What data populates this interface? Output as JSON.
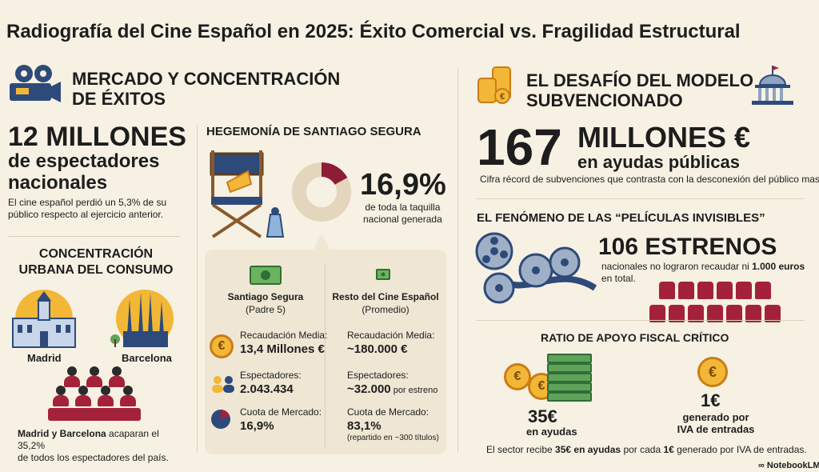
{
  "title": "Radiografía del Cine Español en 2025: Éxito Comercial vs. Fragilidad Estructural",
  "left": {
    "section_title_1": "MERCADO Y CONCENTRACIÓN",
    "section_title_2": "DE ÉXITOS",
    "spectators_big": "12 MILLONES",
    "spectators_line2": "de espectadores",
    "spectators_line3": "nacionales",
    "spectators_note": "El cine español perdió un 5,3% de su público respecto al ejercicio anterior.",
    "urban_title_1": "CONCENTRACIÓN",
    "urban_title_2": "URBANA DEL CONSUMO",
    "city_1": "Madrid",
    "city_2": "Barcelona",
    "urban_note_bold": "Madrid y Barcelona",
    "urban_note_rest": " acaparan el 35,2%",
    "urban_note_line2": "de todos los espectadores del país."
  },
  "middle": {
    "title": "HEGEMONÍA DE SANTIAGO SEGURA",
    "percent": "16,9%",
    "percent_caption_1": "de toda la taquilla",
    "percent_caption_2": "nacional generada",
    "share_fraction": 0.169,
    "col_1_title": "Santiago Segura",
    "col_1_sub": "(Padre 5)",
    "col_2_title": "Resto del Cine Español",
    "col_2_sub": "(Promedio)",
    "rows": [
      {
        "label": "Recaudación Media:",
        "value_1": "13,4 Millones €",
        "label_2": "Recaudación Media:",
        "value_2": "~180.000 €",
        "extra_2": ""
      },
      {
        "label": "Espectadores:",
        "value_1": "2.043.434",
        "label_2": "Espectadores:",
        "value_2": "~32.000",
        "extra_2": " por estreno"
      },
      {
        "label": "Cuota de Mercado:",
        "value_1": "16,9%",
        "label_2": "Cuota de Mercado:",
        "value_2": "83,1%",
        "extra_2": "(repartido en ~300 títulos)"
      }
    ]
  },
  "right": {
    "section_title_1": "EL DESAFÍO DEL MODELO",
    "section_title_2": "SUBVENCIONADO",
    "subsidy_number": "167",
    "subsidy_unit": "MILLONES €",
    "subsidy_caption": "en ayudas públicas",
    "subsidy_note": "Cifra récord de subvenciones que contrasta con la desconexión del público masivo.",
    "invisible_title": "EL FENÓMENO DE LAS “PELÍCULAS INVISIBLES”",
    "premieres_big": "106 ESTRENOS",
    "premieres_note_1": "nacionales no lograron recaudar ni ",
    "premieres_note_bold": "1.000 euros",
    "premieres_note_2": "en total.",
    "ratio_title": "RATIO DE APOYO FISCAL CRÍTICO",
    "ratio_left_big": "35€",
    "ratio_left_caption": "en ayudas",
    "ratio_right_big": "1€",
    "ratio_right_caption_1": "generado por",
    "ratio_right_caption_2": "IVA de entradas",
    "ratio_note_1": "El sector recibe ",
    "ratio_note_bold": "35€ en ayudas",
    "ratio_note_2": " por cada ",
    "ratio_note_bold_2": "1€",
    "ratio_note_3": " generado por IVA de entradas.",
    "coin_symbol": "€"
  },
  "brand": "NotebookLM",
  "colors": {
    "accent": "#a3223a",
    "gold": "#f2b736",
    "bg": "#f7f1e3",
    "navy": "#2e4a7a"
  }
}
